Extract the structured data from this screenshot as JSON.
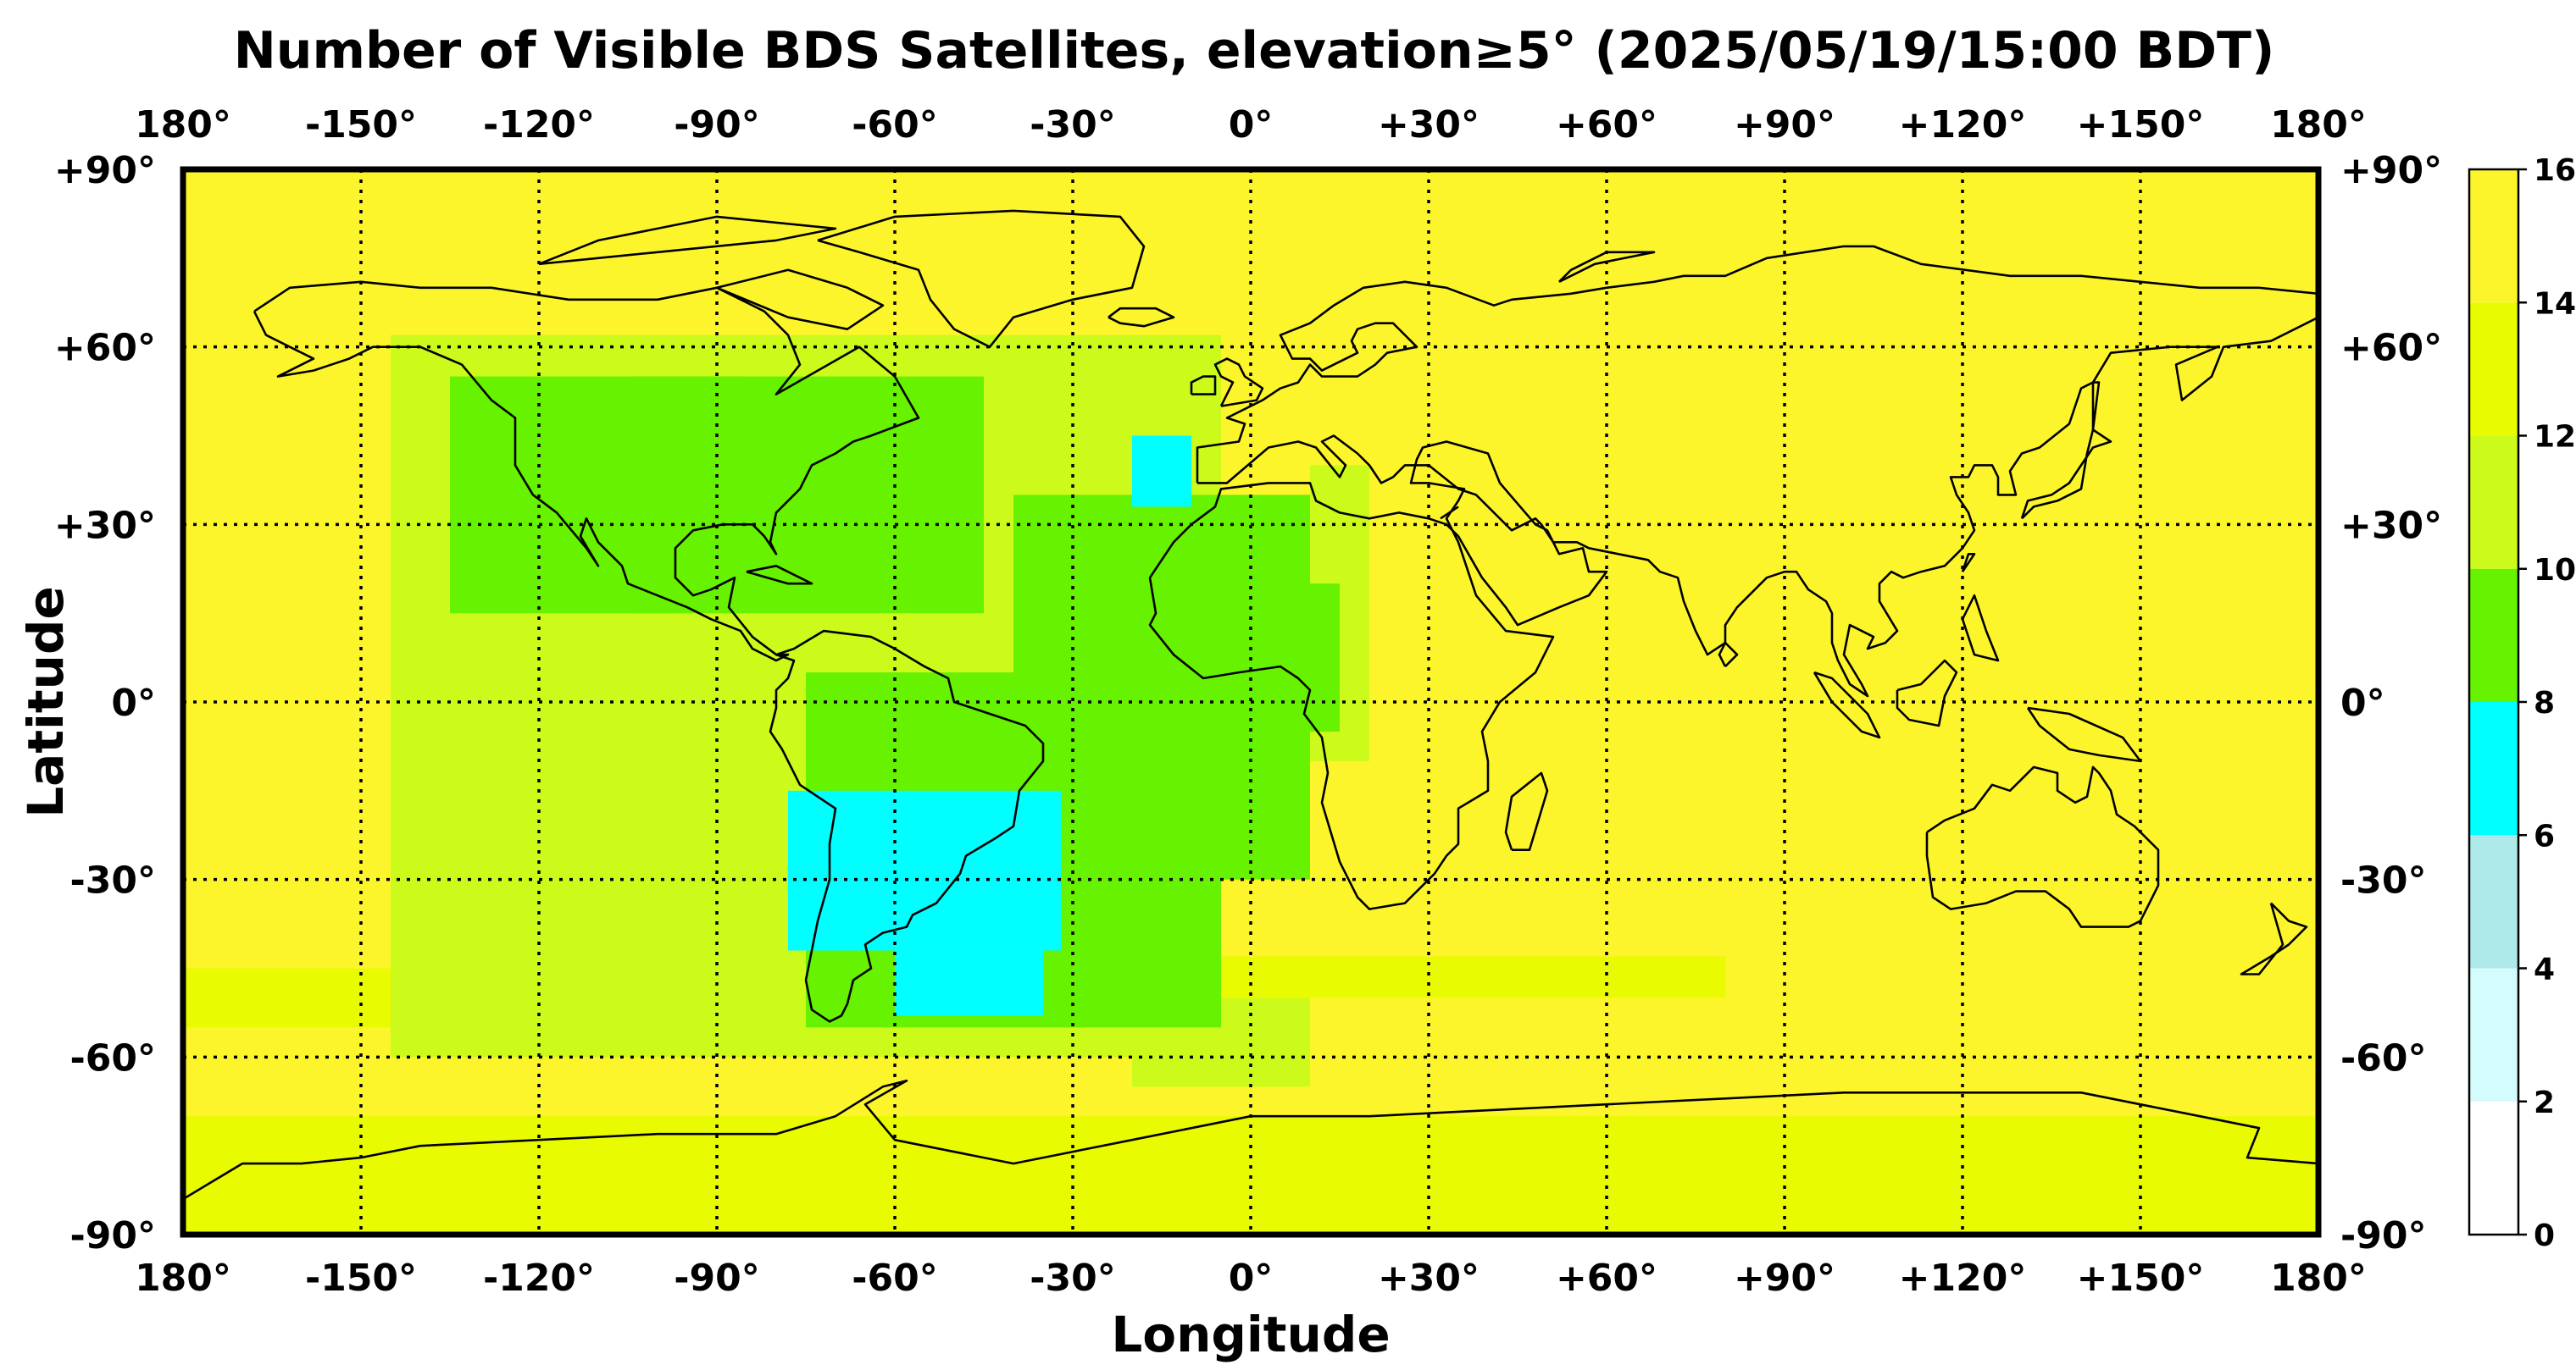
{
  "title": "Number of Visible BDS Satellites, elevation≥5° (2025/05/19/15:00 BDT)",
  "chart_data": {
    "type": "heatmap",
    "title": "Number of Visible BDS Satellites, elevation≥5° (2025/05/19/15:00 BDT)",
    "xlabel": "Longitude",
    "ylabel": "Latitude",
    "xlim": [
      -180,
      180
    ],
    "ylim": [
      -90,
      90
    ],
    "x_ticks": [
      -180,
      -150,
      -120,
      -90,
      -60,
      -30,
      0,
      30,
      60,
      90,
      120,
      150,
      180
    ],
    "x_tick_labels": [
      "180°",
      "-150°",
      "-120°",
      "-90°",
      "-60°",
      "-30°",
      "0°",
      "+30°",
      "+60°",
      "+90°",
      "+120°",
      "+150°",
      "180°"
    ],
    "y_ticks": [
      90,
      60,
      30,
      0,
      -30,
      -60,
      -90
    ],
    "y_tick_labels": [
      "+90°",
      "+60°",
      "+30°",
      "0°",
      "-30°",
      "-60°",
      "-90°"
    ],
    "grid": true,
    "colorbar": {
      "range": [
        0,
        16
      ],
      "ticks": [
        0,
        2,
        4,
        6,
        8,
        10,
        12,
        14,
        16
      ],
      "bins": [
        {
          "from": 0,
          "to": 2,
          "color": "#ffffff"
        },
        {
          "from": 2,
          "to": 4,
          "color": "#d4fcfc"
        },
        {
          "from": 4,
          "to": 6,
          "color": "#ade9e9"
        },
        {
          "from": 6,
          "to": 8,
          "color": "#00ffff"
        },
        {
          "from": 8,
          "to": 10,
          "color": "#66f200"
        },
        {
          "from": 10,
          "to": 12,
          "color": "#ccfa1a"
        },
        {
          "from": 12,
          "to": 14,
          "color": "#e9fb00"
        },
        {
          "from": 14,
          "to": 16,
          "color": "#fdf52c"
        }
      ]
    },
    "background_value": 15,
    "regions": [
      {
        "lon": [
          -180,
          180
        ],
        "lat": [
          -90,
          -70
        ],
        "value": 13
      },
      {
        "lon": [
          -180,
          -130
        ],
        "lat": [
          -55,
          -45
        ],
        "value": 13
      },
      {
        "lon": [
          -145,
          -5
        ],
        "lat": [
          -60,
          62
        ],
        "value": 11
      },
      {
        "lon": [
          -20,
          10
        ],
        "lat": [
          -65,
          -50
        ],
        "value": 11
      },
      {
        "lon": [
          10,
          20
        ],
        "lat": [
          -10,
          40
        ],
        "value": 11
      },
      {
        "lon": [
          -15,
          80
        ],
        "lat": [
          -50,
          -43
        ],
        "value": 13
      },
      {
        "lon": [
          -135,
          -85
        ],
        "lat": [
          15,
          55
        ],
        "value": 9
      },
      {
        "lon": [
          -105,
          -45
        ],
        "lat": [
          15,
          55
        ],
        "value": 9
      },
      {
        "lon": [
          -75,
          -5
        ],
        "lat": [
          -55,
          5
        ],
        "value": 9
      },
      {
        "lon": [
          -40,
          10
        ],
        "lat": [
          -30,
          35
        ],
        "value": 9
      },
      {
        "lon": [
          -15,
          15
        ],
        "lat": [
          -5,
          20
        ],
        "value": 9
      },
      {
        "lon": [
          -78,
          -32
        ],
        "lat": [
          -42,
          -15
        ],
        "value": 7
      },
      {
        "lon": [
          -60,
          -35
        ],
        "lat": [
          -53,
          -42
        ],
        "value": 7
      },
      {
        "lon": [
          -20,
          -10
        ],
        "lat": [
          33,
          45
        ],
        "value": 7
      }
    ]
  }
}
